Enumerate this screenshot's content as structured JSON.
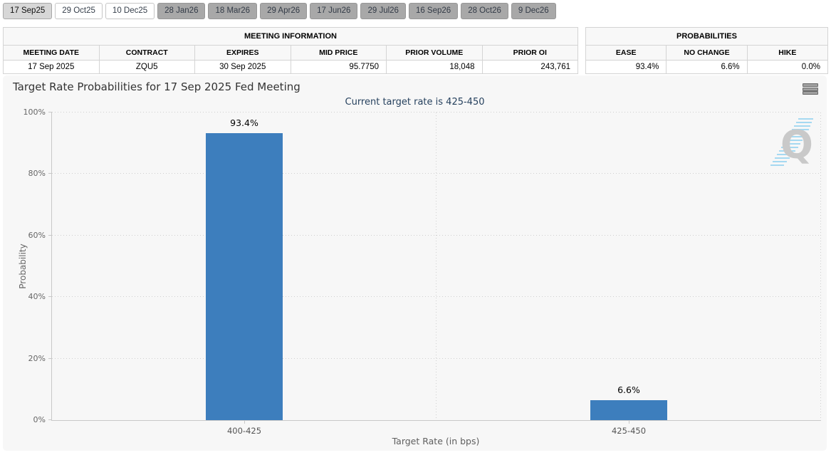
{
  "tabs": [
    {
      "label": "17 Sep25",
      "state": "selected"
    },
    {
      "label": "29 Oct25",
      "state": "open"
    },
    {
      "label": "10 Dec25",
      "state": "open"
    },
    {
      "label": "28 Jan26",
      "state": "muted"
    },
    {
      "label": "18 Mar26",
      "state": "muted"
    },
    {
      "label": "29 Apr26",
      "state": "muted"
    },
    {
      "label": "17 Jun26",
      "state": "muted"
    },
    {
      "label": "29 Jul26",
      "state": "muted"
    },
    {
      "label": "16 Sep26",
      "state": "muted"
    },
    {
      "label": "28 Oct26",
      "state": "muted"
    },
    {
      "label": "9 Dec26",
      "state": "muted"
    }
  ],
  "meeting_info": {
    "title": "MEETING INFORMATION",
    "columns": [
      "MEETING DATE",
      "CONTRACT",
      "EXPIRES",
      "MID PRICE",
      "PRIOR VOLUME",
      "PRIOR OI"
    ],
    "row": [
      "17 Sep 2025",
      "ZQU5",
      "30 Sep 2025",
      "95.7750",
      "18,048",
      "243,761"
    ]
  },
  "probabilities": {
    "title": "PROBABILITIES",
    "columns": [
      "EASE",
      "NO CHANGE",
      "HIKE"
    ],
    "row": [
      "93.4%",
      "6.6%",
      "0.0%"
    ]
  },
  "chart_data": {
    "type": "bar",
    "title": "Target Rate Probabilities for 17 Sep 2025 Fed Meeting",
    "subtitle": "Current target rate is 425-450",
    "categories": [
      "400-425",
      "425-450"
    ],
    "values": [
      93.4,
      6.6
    ],
    "value_labels": [
      "93.4%",
      "6.6%"
    ],
    "xlabel": "Target Rate (in bps)",
    "ylabel": "Probability",
    "ylim": [
      0,
      100
    ],
    "yticks": [
      0,
      20,
      40,
      60,
      80,
      100
    ],
    "ytick_labels": [
      "0%",
      "20%",
      "40%",
      "60%",
      "80%",
      "100%"
    ],
    "grid": "dotted-horizontal-and-category-boundaries",
    "legend": "none",
    "bar_color": "#3d7ebd"
  },
  "icons": {
    "context_menu": "hamburger-icon",
    "watermark": "quikstrike-q-logo"
  },
  "colors": {
    "bar": "#3d7ebd",
    "panel_bg": "#f7f7f7",
    "subtitle_text": "#26415e",
    "muted_tab_bg": "#a8a8a8"
  }
}
